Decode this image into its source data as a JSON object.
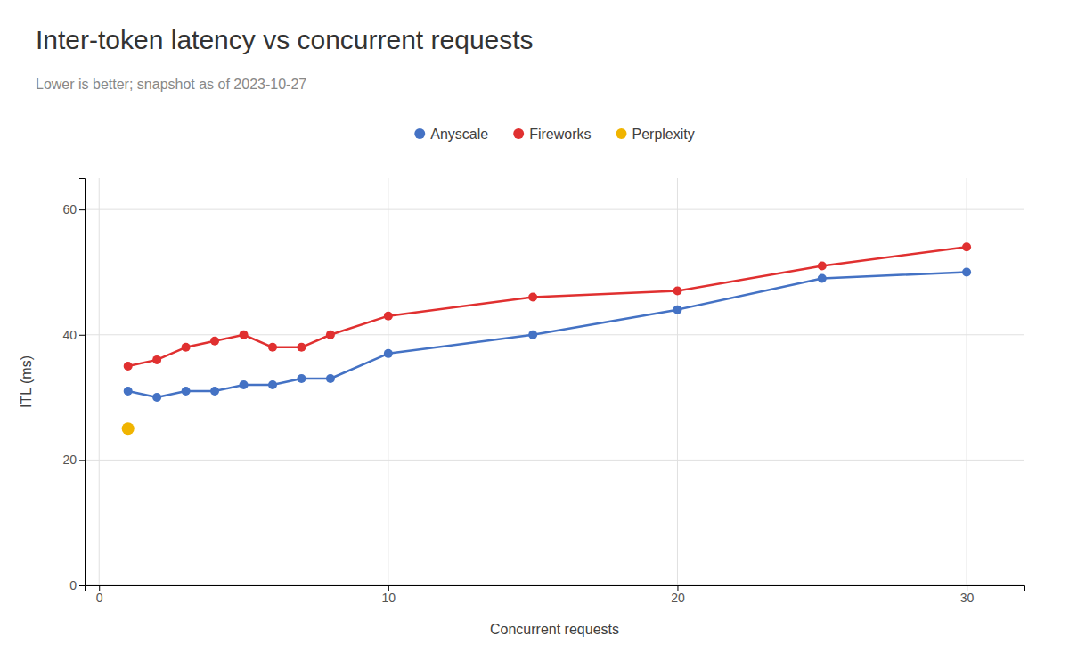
{
  "chart_data": {
    "type": "line",
    "title": "Inter-token latency vs concurrent requests",
    "subtitle": "Lower is better; snapshot as of 2023-10-27",
    "xlabel": "Concurrent requests",
    "ylabel": "ITL (ms)",
    "xlim": [
      -0.5,
      32
    ],
    "ylim": [
      0,
      65
    ],
    "xticks": [
      0,
      10,
      20,
      30
    ],
    "yticks": [
      0,
      20,
      40,
      60
    ],
    "grid": true,
    "legend": "top",
    "marker": "circle",
    "series": [
      {
        "name": "Anyscale",
        "color": "#4472C4",
        "x": [
          1,
          2,
          3,
          4,
          5,
          6,
          7,
          8,
          10,
          15,
          20,
          25,
          30
        ],
        "values": [
          31,
          30,
          31,
          31,
          32,
          32,
          33,
          33,
          37,
          40,
          44,
          49,
          50
        ]
      },
      {
        "name": "Fireworks",
        "color": "#E03030",
        "x": [
          1,
          2,
          3,
          4,
          5,
          6,
          7,
          8,
          10,
          15,
          20,
          25,
          30
        ],
        "values": [
          35,
          36,
          38,
          39,
          40,
          38,
          38,
          40,
          43,
          46,
          47,
          51,
          54
        ]
      },
      {
        "name": "Perplexity",
        "color": "#F0B400",
        "line_style": "none",
        "x": [
          1
        ],
        "values": [
          25
        ]
      }
    ]
  }
}
